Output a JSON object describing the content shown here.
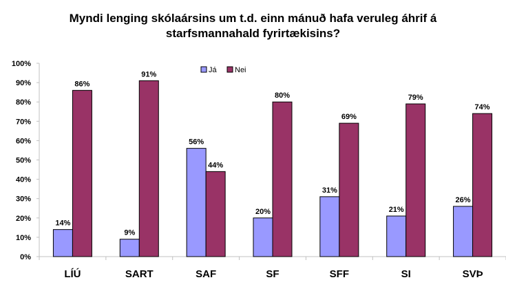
{
  "chart_data": {
    "type": "bar",
    "title_line1": "Myndi lenging skólaársins um t.d. einn mánuð hafa veruleg áhrif á",
    "title_line2": "starfsmannahald fyrirtækisins?",
    "categories": [
      "LÍÚ",
      "SART",
      "SAF",
      "SF",
      "SFF",
      "SI",
      "SVÞ"
    ],
    "series": [
      {
        "name": "Já",
        "color": "#9999FF",
        "values": [
          14,
          9,
          56,
          20,
          31,
          21,
          26
        ]
      },
      {
        "name": "Nei",
        "color": "#993366",
        "values": [
          86,
          91,
          44,
          80,
          69,
          79,
          74
        ]
      }
    ],
    "yticks": [
      "0%",
      "10%",
      "20%",
      "30%",
      "40%",
      "50%",
      "60%",
      "70%",
      "80%",
      "90%",
      "100%"
    ],
    "ylim": [
      0,
      100
    ],
    "unit": "%",
    "legend": "top-center",
    "grid": false
  }
}
